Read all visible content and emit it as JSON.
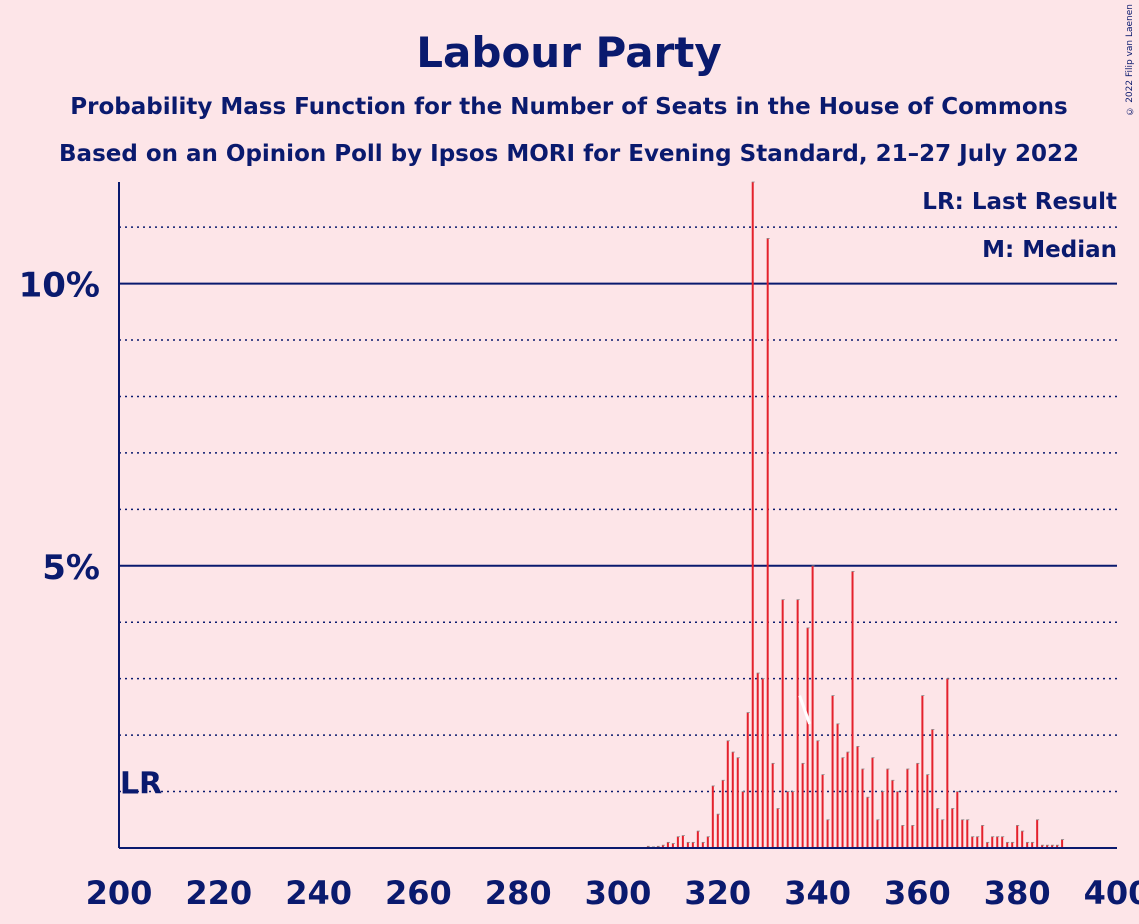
{
  "copyright": "© 2022 Filip van Laenen",
  "colors": {
    "background": "#FDE5E8",
    "text": "#0A1A6E",
    "bar": "#E4212C",
    "median_line": "#FFFFFF"
  },
  "chart_data": {
    "type": "bar",
    "title": "Labour Party",
    "subtitle1": "Probability Mass Function for the Number of Seats in the House of Commons",
    "subtitle2": "Based on an Opinion Poll by Ipsos MORI for Evening Standard, 21–27 July 2022",
    "legend": {
      "last_result": "LR: Last Result",
      "median": "M: Median",
      "placement": "top-right"
    },
    "x_ticks": [
      "200",
      "220",
      "240",
      "260",
      "280",
      "300",
      "320",
      "340",
      "360",
      "380",
      "400"
    ],
    "xlim": [
      200,
      400
    ],
    "y_ticks": [
      {
        "value": 5,
        "label": "5%"
      },
      {
        "value": 10,
        "label": "10%"
      }
    ],
    "ylim": [
      0,
      11.8
    ],
    "minor_grid_step": 1,
    "last_result": {
      "label": "LR",
      "seats": 202,
      "value": 1.0
    },
    "median": {
      "label": "M",
      "seats": 338
    },
    "x": [
      300,
      301,
      302,
      303,
      304,
      305,
      306,
      307,
      308,
      309,
      310,
      311,
      312,
      313,
      314,
      315,
      316,
      317,
      318,
      319,
      320,
      321,
      322,
      323,
      324,
      325,
      326,
      327,
      328,
      329,
      330,
      331,
      332,
      333,
      334,
      335,
      336,
      337,
      338,
      339,
      340,
      341,
      342,
      343,
      344,
      345,
      346,
      347,
      348,
      349,
      350,
      351,
      352,
      353,
      354,
      355,
      356,
      357,
      358,
      359,
      360,
      361,
      362,
      363,
      364,
      365,
      366,
      367,
      368,
      369,
      370,
      371,
      372,
      373,
      374,
      375,
      376,
      377,
      378,
      379,
      380,
      381,
      382,
      383,
      384,
      385,
      386,
      387,
      388,
      389
    ],
    "values": [
      0.01,
      0.01,
      0.01,
      0.01,
      0.01,
      0.01,
      0.03,
      0.02,
      0.03,
      0.05,
      0.1,
      0.08,
      0.2,
      0.22,
      0.1,
      0.1,
      0.3,
      0.1,
      0.2,
      1.1,
      0.6,
      1.2,
      1.9,
      1.7,
      1.6,
      1.0,
      2.4,
      11.8,
      3.1,
      3.0,
      10.8,
      1.5,
      0.7,
      4.4,
      1.0,
      1.0,
      4.4,
      1.5,
      3.9,
      5.0,
      1.9,
      1.3,
      0.5,
      2.7,
      2.2,
      1.6,
      1.7,
      4.9,
      1.8,
      1.4,
      0.9,
      1.6,
      0.5,
      1.0,
      1.4,
      1.2,
      1.0,
      0.4,
      1.4,
      0.4,
      1.5,
      2.7,
      1.3,
      2.1,
      0.7,
      0.5,
      3.0,
      0.7,
      1.0,
      0.5,
      0.5,
      0.2,
      0.2,
      0.4,
      0.1,
      0.2,
      0.2,
      0.2,
      0.1,
      0.1,
      0.4,
      0.3,
      0.1,
      0.1,
      0.5,
      0.05,
      0.05,
      0.05,
      0.05,
      0.15
    ]
  }
}
